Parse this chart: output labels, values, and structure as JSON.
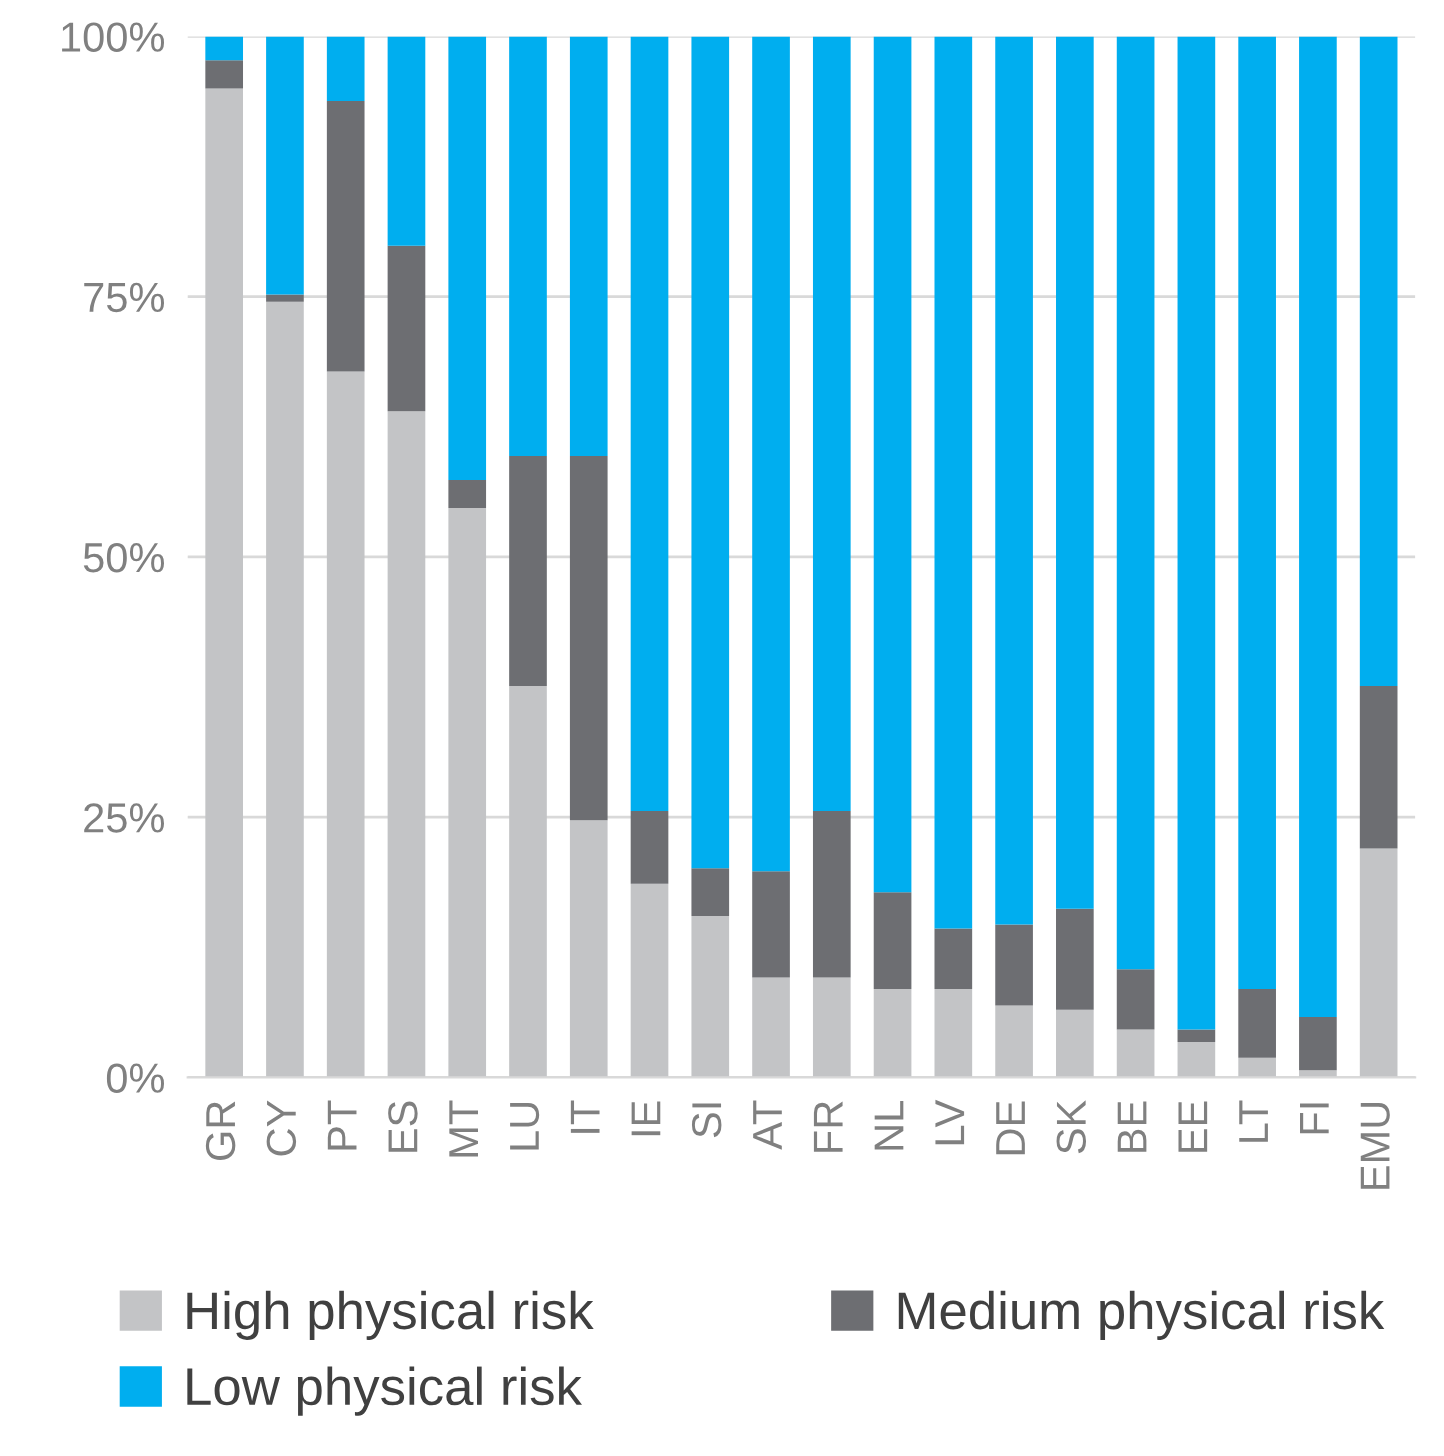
{
  "chart_data": {
    "type": "bar",
    "stacked": true,
    "categories": [
      "GR",
      "CY",
      "PT",
      "ES",
      "MT",
      "LU",
      "IT",
      "IE",
      "SI",
      "AT",
      "FR",
      "NL",
      "LV",
      "DE",
      "SK",
      "BE",
      "EE",
      "LT",
      "FI",
      "EMU"
    ],
    "series": [
      {
        "name": "High physical risk",
        "color": "#c3c4c6",
        "values": [
          95,
          74.5,
          67.8,
          64,
          54.7,
          37.6,
          24.7,
          18.6,
          15.5,
          9.6,
          9.6,
          8.5,
          8.5,
          6.9,
          6.5,
          4.6,
          3.4,
          1.9,
          0.7,
          22
        ]
      },
      {
        "name": "Medium physical risk",
        "color": "#6d6e72",
        "values": [
          2.7,
          0.7,
          26,
          15.9,
          2.7,
          22.1,
          35,
          7,
          4.6,
          10.2,
          16,
          9.3,
          5.8,
          7.8,
          9.7,
          5.8,
          1.2,
          6.6,
          5.1,
          15.6
        ]
      },
      {
        "name": "Low physical risk",
        "color": "#00aeef",
        "values": [
          2.3,
          24.8,
          6.2,
          20.1,
          42.6,
          40.3,
          40.3,
          74.4,
          79.9,
          80.2,
          74.4,
          82.2,
          85.7,
          85.3,
          83.8,
          89.6,
          95.4,
          91.5,
          94.2,
          62.4
        ]
      }
    ],
    "ylim": [
      0,
      100
    ],
    "yticks": [
      {
        "value": 0,
        "label": "0%"
      },
      {
        "value": 25,
        "label": "25%"
      },
      {
        "value": 50,
        "label": "50%"
      },
      {
        "value": 75,
        "label": "75%"
      },
      {
        "value": 100,
        "label": "100%"
      }
    ],
    "grid": "y",
    "legend": "bottom"
  }
}
